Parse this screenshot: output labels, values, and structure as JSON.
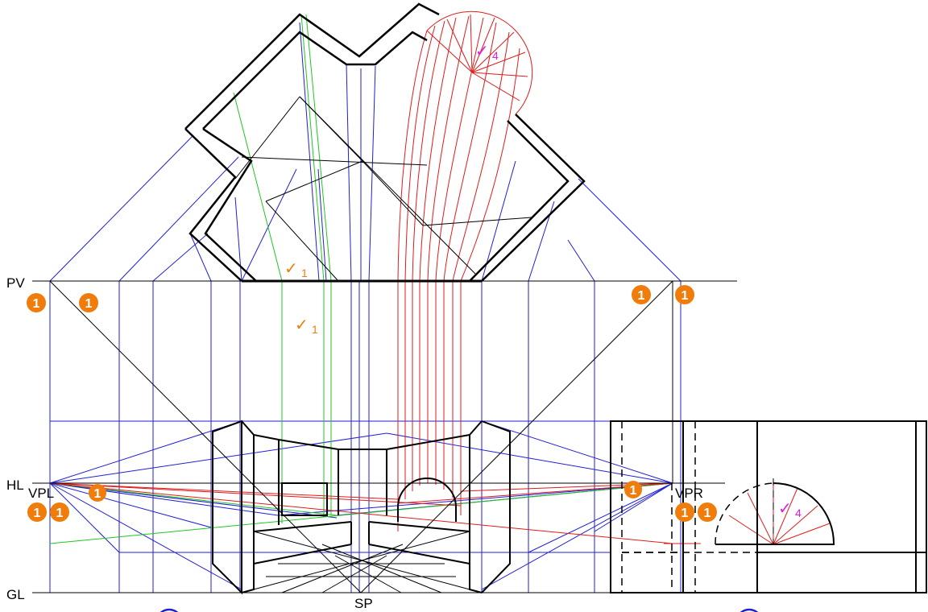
{
  "labels": {
    "pv": "PV",
    "hl": "HL",
    "gl": "GL",
    "vpl": "VPL",
    "vpr": "VPR",
    "sp": "SP"
  },
  "badges": {
    "step_glyph": "1"
  },
  "notes": {
    "check_glyph": "✓",
    "step_one": "1",
    "step_four": "4"
  },
  "colors": {
    "structure": "#000000",
    "blue_construction": "#1f1fd6",
    "green_construction": "#1fc71f",
    "red_construction": "#e01b1b",
    "badge": "#f07c0c",
    "note_orange": "#f07c0c",
    "note_magenta": "#e020e0",
    "circle_blue": "#1f1fd6"
  }
}
